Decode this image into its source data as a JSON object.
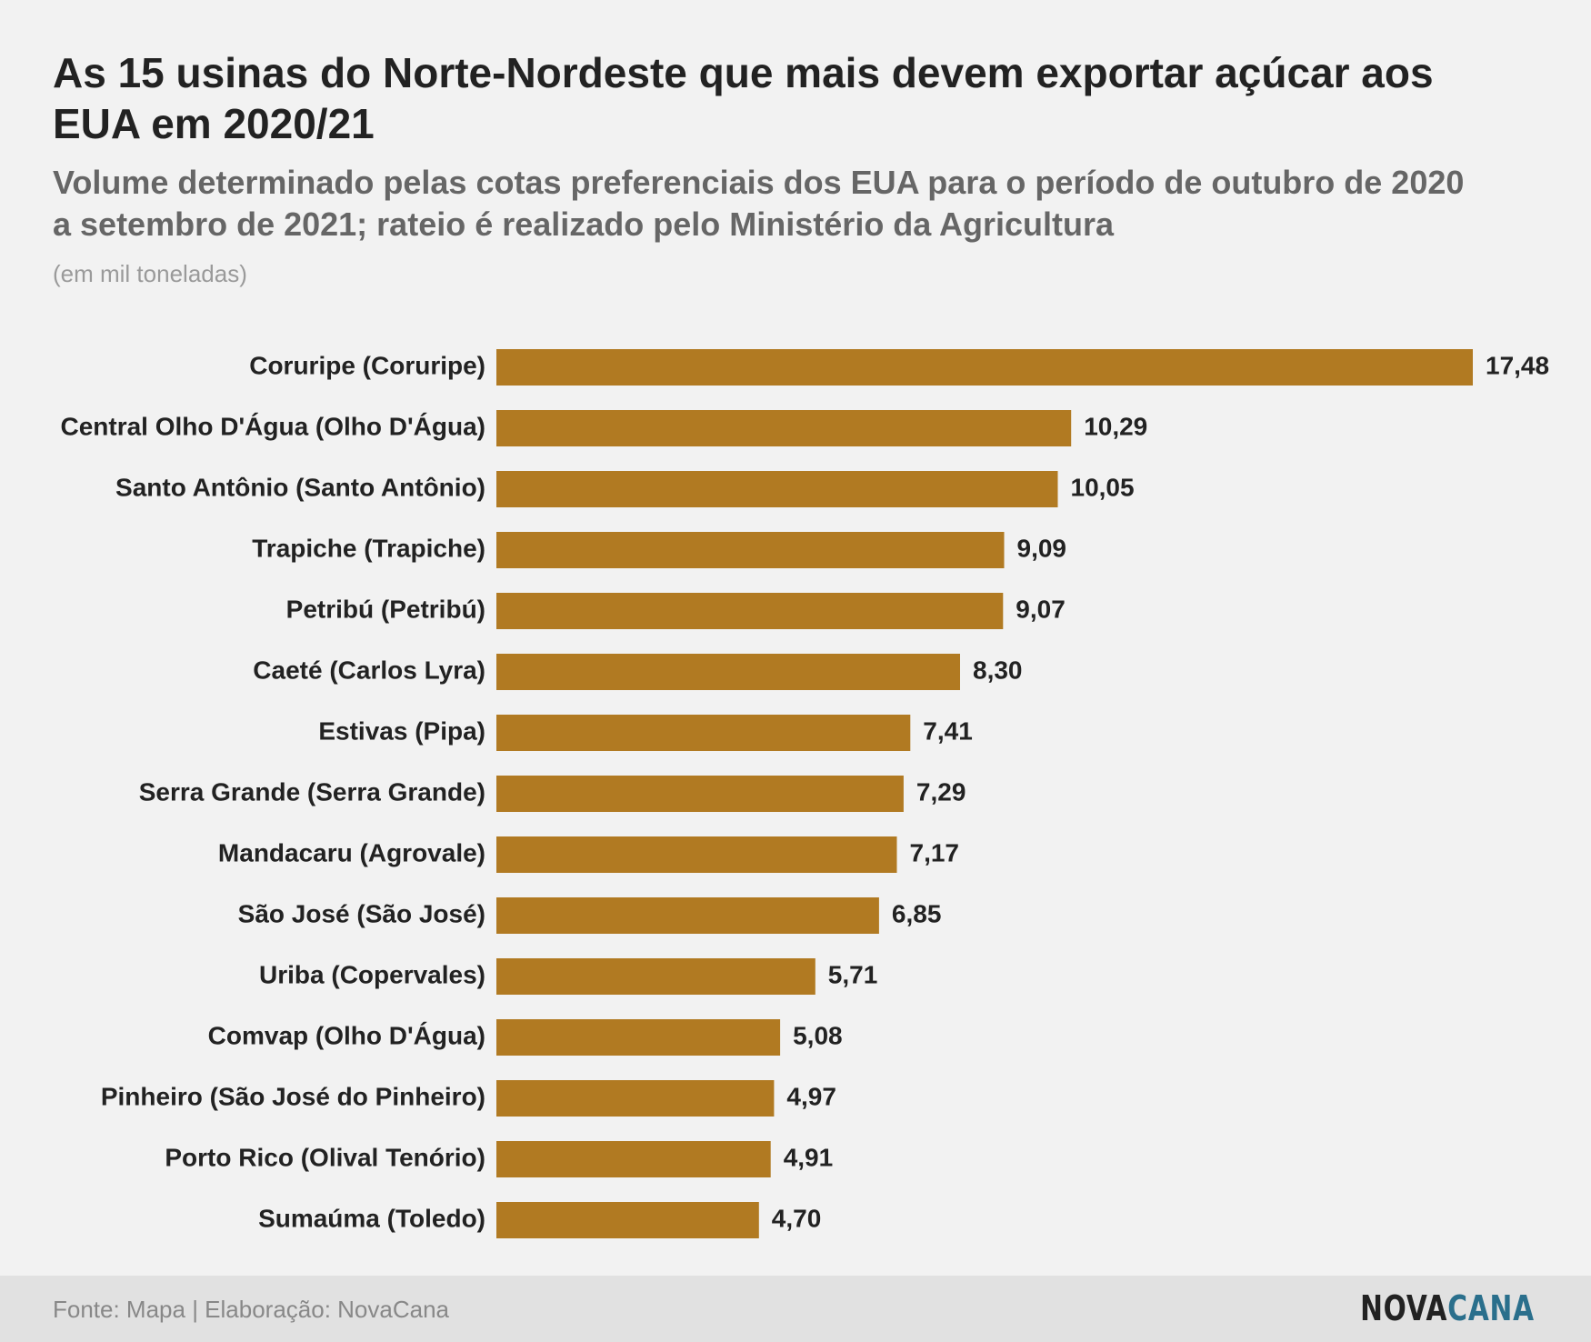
{
  "header": {
    "title": "As 15 usinas do Norte-Nordeste que mais devem exportar açúcar aos EUA em 2020/21",
    "subtitle": "Volume determinado pelas cotas preferenciais dos EUA para o período de outubro de 2020 a setembro de 2021; rateio é realizado pelo Ministério da Agricultura",
    "unit": "(em mil toneladas)"
  },
  "footer": {
    "source": "Fonte: Mapa | Elaboração: NovaCana",
    "logo_part1": "NOVA",
    "logo_part2": "CANA"
  },
  "colors": {
    "bar": "#b17a22",
    "label": "#222222",
    "logo_accent": "#2a6f8c"
  },
  "chart_data": {
    "type": "bar",
    "orientation": "horizontal",
    "categories": [
      "Coruripe (Coruripe)",
      "Central Olho D'Água (Olho D'Água)",
      "Santo Antônio (Santo Antônio)",
      "Trapiche (Trapiche)",
      "Petribú (Petribú)",
      "Caeté (Carlos Lyra)",
      "Estivas (Pipa)",
      "Serra Grande (Serra Grande)",
      "Mandacaru (Agrovale)",
      "São José (São José)",
      "Uriba (Copervales)",
      "Comvap (Olho D'Água)",
      "Pinheiro (São José do Pinheiro)",
      "Porto Rico (Olival Tenório)",
      "Sumaúma (Toledo)"
    ],
    "values": [
      17.48,
      10.29,
      10.05,
      9.09,
      9.07,
      8.3,
      7.41,
      7.29,
      7.17,
      6.85,
      5.71,
      5.08,
      4.97,
      4.91,
      4.7
    ],
    "value_labels": [
      "17,48",
      "10,29",
      "10,05",
      "9,09",
      "9,07",
      "8,30",
      "7,41",
      "7,29",
      "7,17",
      "6,85",
      "5,71",
      "5,08",
      "4,97",
      "4,91",
      "4,70"
    ],
    "xlim": [
      0,
      17.48
    ],
    "grid": false,
    "legend": "none"
  }
}
